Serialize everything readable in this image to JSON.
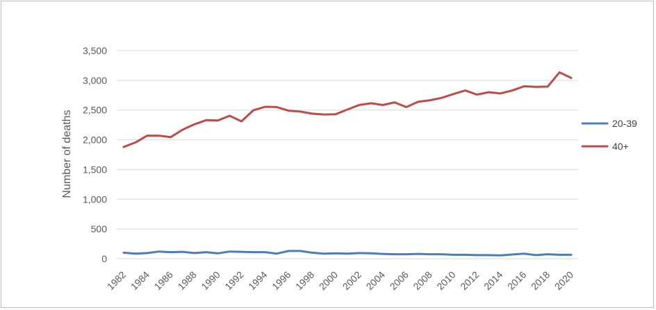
{
  "chart_data": {
    "type": "line",
    "title": "",
    "xlabel": "",
    "ylabel": "Number of deaths",
    "ylim": [
      0,
      3500
    ],
    "yticks": [
      0,
      500,
      1000,
      1500,
      2000,
      2500,
      3000,
      3500
    ],
    "ytick_labels": [
      "0",
      "500",
      "1,000",
      "1,500",
      "2,000",
      "2,500",
      "3,000",
      "3,500"
    ],
    "grid": true,
    "legend_position": "right",
    "x": [
      1982,
      1983,
      1984,
      1985,
      1986,
      1987,
      1988,
      1989,
      1990,
      1991,
      1992,
      1993,
      1994,
      1995,
      1996,
      1997,
      1998,
      1999,
      2000,
      2001,
      2002,
      2003,
      2004,
      2005,
      2006,
      2007,
      2008,
      2009,
      2010,
      2011,
      2012,
      2013,
      2014,
      2015,
      2016,
      2017,
      2018,
      2019,
      2020
    ],
    "xtick_labels": [
      "1982",
      "1984",
      "1986",
      "1988",
      "1990",
      "1992",
      "1994",
      "1996",
      "1998",
      "2000",
      "2002",
      "2004",
      "2006",
      "2008",
      "2010",
      "2012",
      "2014",
      "2016",
      "2018",
      "2020"
    ],
    "series": [
      {
        "name": "20-39",
        "color": "#4a7ebb",
        "values": [
          100,
          85,
          95,
          120,
          110,
          115,
          95,
          110,
          90,
          120,
          115,
          110,
          110,
          85,
          130,
          130,
          100,
          85,
          90,
          85,
          95,
          90,
          80,
          75,
          75,
          80,
          75,
          75,
          65,
          65,
          60,
          60,
          55,
          70,
          85,
          60,
          75,
          65,
          65
        ]
      },
      {
        "name": "40+",
        "color": "#be4b48",
        "values": [
          1880,
          1955,
          2070,
          2070,
          2045,
          2170,
          2260,
          2330,
          2325,
          2405,
          2310,
          2495,
          2555,
          2550,
          2490,
          2475,
          2440,
          2425,
          2430,
          2510,
          2585,
          2615,
          2585,
          2630,
          2550,
          2640,
          2665,
          2705,
          2770,
          2830,
          2760,
          2800,
          2780,
          2830,
          2900,
          2890,
          2895,
          3135,
          3040
        ]
      }
    ]
  }
}
